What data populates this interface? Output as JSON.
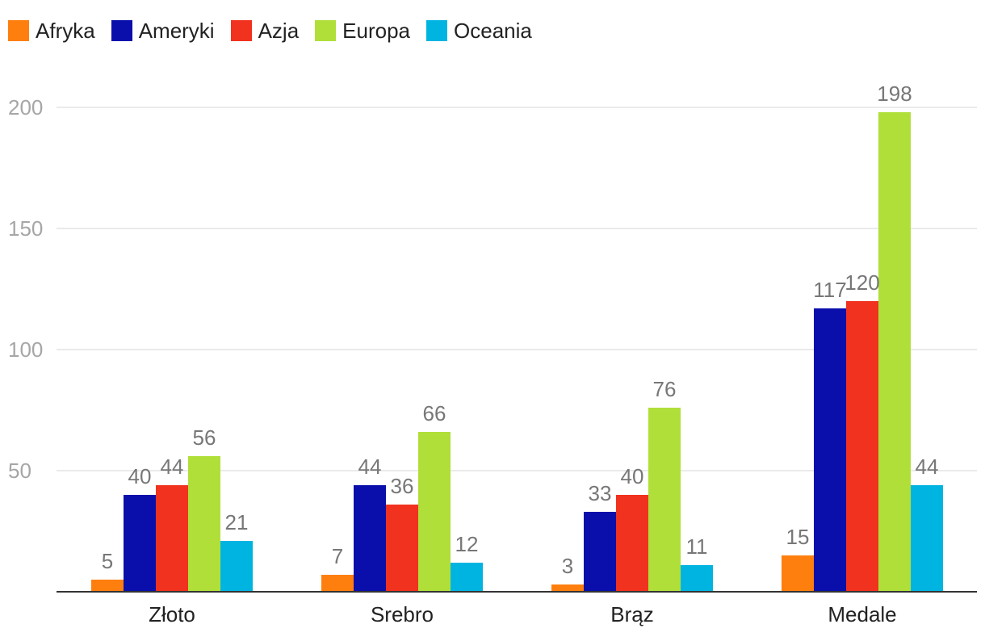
{
  "chart_data": {
    "type": "bar",
    "title": "",
    "xlabel": "",
    "ylabel": "",
    "ylim": [
      0,
      200
    ],
    "yticks": [
      50,
      100,
      150,
      200
    ],
    "grid": true,
    "legend_position": "top-left",
    "categories": [
      "Złoto",
      "Srebro",
      "Brąz",
      "Medale"
    ],
    "series": [
      {
        "name": "Afryka",
        "color": "#ff7f0e",
        "values": [
          5,
          7,
          3,
          15
        ]
      },
      {
        "name": "Ameryki",
        "color": "#0a0fab",
        "values": [
          40,
          44,
          33,
          117
        ]
      },
      {
        "name": "Azja",
        "color": "#f0321e",
        "values": [
          44,
          36,
          40,
          120
        ]
      },
      {
        "name": "Europa",
        "color": "#b0df3a",
        "values": [
          56,
          66,
          76,
          198
        ]
      },
      {
        "name": "Oceania",
        "color": "#00b4e2",
        "values": [
          21,
          12,
          11,
          44
        ]
      }
    ]
  }
}
